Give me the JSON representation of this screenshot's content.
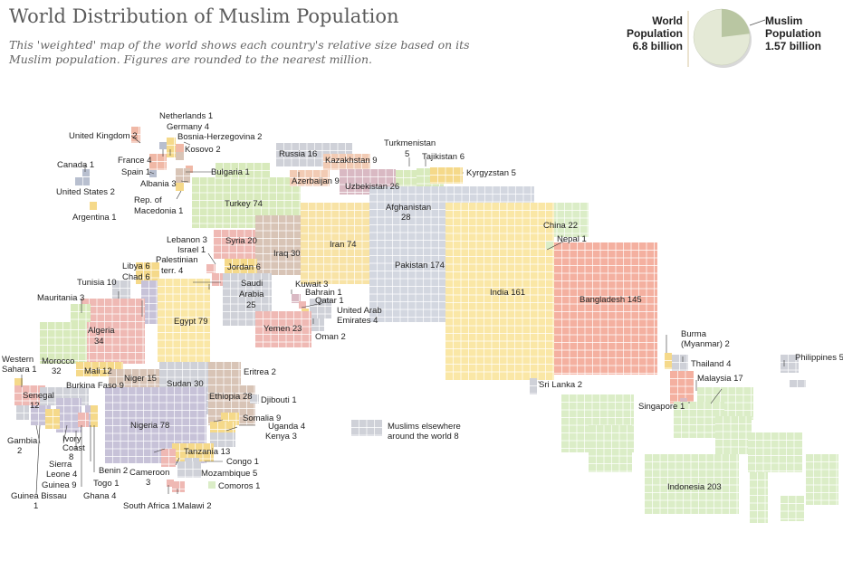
{
  "title": "World Distribution of Muslim Population",
  "subtitle": "This 'weighted' map of the world shows each country's relative size based on its Muslim population. Figures are rounded to the nearest million.",
  "totals": {
    "world": {
      "line1": "World",
      "line2": "Population",
      "line3": "6.8 billion",
      "value": 6.8
    },
    "muslim": {
      "line1": "Muslim",
      "line2": "Population",
      "line3": "1.57 billion",
      "value": 1.57
    },
    "colors": {
      "world": "#e4e9d6",
      "muslim": "#b9c6a2"
    }
  },
  "legend": {
    "line1": "Muslims elsewhere",
    "line2": "around the world 8"
  },
  "colors": {
    "europe": "#f0b8a6",
    "americas": "#b8bfcf",
    "turkey": "#d8eabc",
    "africa_north": "#f5d98a",
    "egypt": "#fae7a6",
    "sahel": "#efb9b4",
    "east_africa": "#d8c4b6",
    "west_africa": "#c7c2d8",
    "middle_east": "#f2cbb4",
    "arabia": "#cfd1d8",
    "iran": "#f8e3a6",
    "central_asia": "#d9b9c3",
    "pakistan": "#d3d7e0",
    "india": "#fae7a6",
    "bangladesh": "#f4b0a0",
    "southeast_asia": "#dbedc7",
    "china": "#dbedc7",
    "grid_line": "#ffffff",
    "label": "#222222",
    "leader": "#333333"
  },
  "labels": {
    "netherlands": "Netherlands 1",
    "germany": "Germany 4",
    "united_kingdom": "United Kingdom 2",
    "bosnia": "Bosnia-Herzegovina 2",
    "kosovo": "Kosovo 2",
    "france": "France 4",
    "canada": "Canada 1",
    "spain": "Spain 1",
    "bulgaria": "Bulgaria 1",
    "albania": "Albania 3",
    "united_states": "United States 2",
    "macedonia_1": "Rep. of",
    "macedonia_2": "Macedonia 1",
    "argentina": "Argentina 1",
    "russia": "Russia 16",
    "kazakhstan": "Kazakhstan 9",
    "turkmenistan_1": "Turkmenistan",
    "turkmenistan_2": "5",
    "tajikistan": "Tajikistan 6",
    "kyrgyzstan": "Kyrgyzstan 5",
    "azerbaijan": "Azerbaijan 9",
    "uzbekistan": "Uzbekistan 26",
    "turkey": "Turkey 74",
    "afghanistan_1": "Afghanistan",
    "afghanistan_2": "28",
    "china": "China 22",
    "lebanon": "Lebanon 3",
    "israel": "Israel 1",
    "syria": "Syria 20",
    "iran": "Iran 74",
    "iraq": "Iraq 30",
    "palestinian_1": "Palestinian",
    "palestinian_2": "terr. 4",
    "jordan": "Jordan 6",
    "nepal": "Nepal 1",
    "libya": "Libya 6",
    "chad": "Chad 6",
    "tunisia": "Tunisia 10",
    "pakistan": "Pakistan 174",
    "saudi_1": "Saudi",
    "saudi_2": "Arabia",
    "saudi_3": "25",
    "kuwait": "Kuwait 3",
    "bahrain": "Bahrain 1",
    "qatar": "Qatar 1",
    "uae_1": "United Arab",
    "uae_2": "Emirates 4",
    "mauritania": "Mauritania 3",
    "egypt": "Egypt 79",
    "india": "India 161",
    "bangladesh": "Bangladesh 145",
    "algeria_1": "Algeria",
    "algeria_2": "34",
    "yemen": "Yemen 23",
    "oman": "Oman 2",
    "burma_1": "Burma",
    "burma_2": "(Myanmar) 2",
    "western_sahara_1": "Western",
    "western_sahara_2": "Sahara 1",
    "morocco_1": "Morocco",
    "morocco_2": "32",
    "mali": "Mali 12",
    "niger": "Niger 15",
    "thailand": "Thailand 4",
    "philippines": "Philippines 5",
    "eritrea": "Eritrea 2",
    "burkina": "Burkina Faso 9",
    "senegal_1": "Senegal",
    "senegal_2": "12",
    "sudan": "Sudan 30",
    "sri_lanka": "Sri Lanka 2",
    "malaysia": "Malaysia 17",
    "ethiopia": "Ethiopia 28",
    "djibouti": "Djibouti 1",
    "singapore": "Singapore 1",
    "somalia": "Somalia 9",
    "nigeria": "Nigeria 78",
    "uganda": "Uganda 4",
    "kenya": "Kenya 3",
    "gambia_1": "Gambia",
    "gambia_2": "2",
    "ivory_1": "Ivory",
    "ivory_2": "Coast",
    "ivory_3": "8",
    "tanzania": "Tanzania 13",
    "sierra_1": "Sierra",
    "sierra_2": "Leone 4",
    "congo": "Congo 1",
    "benin": "Benin 2",
    "guinea": "Guinea 9",
    "cameroon_1": "Cameroon",
    "cameroon_2": "3",
    "mozambique": "Mozambique 5",
    "togo": "Togo 1",
    "indonesia": "Indonesia 203",
    "guinea_bissau_1": "Guinea Bissau",
    "guinea_bissau_2": "1",
    "ghana": "Ghana 4",
    "comoros": "Comoros 1",
    "south_africa": "South Africa 1",
    "malawi": "Malawi 2"
  }
}
